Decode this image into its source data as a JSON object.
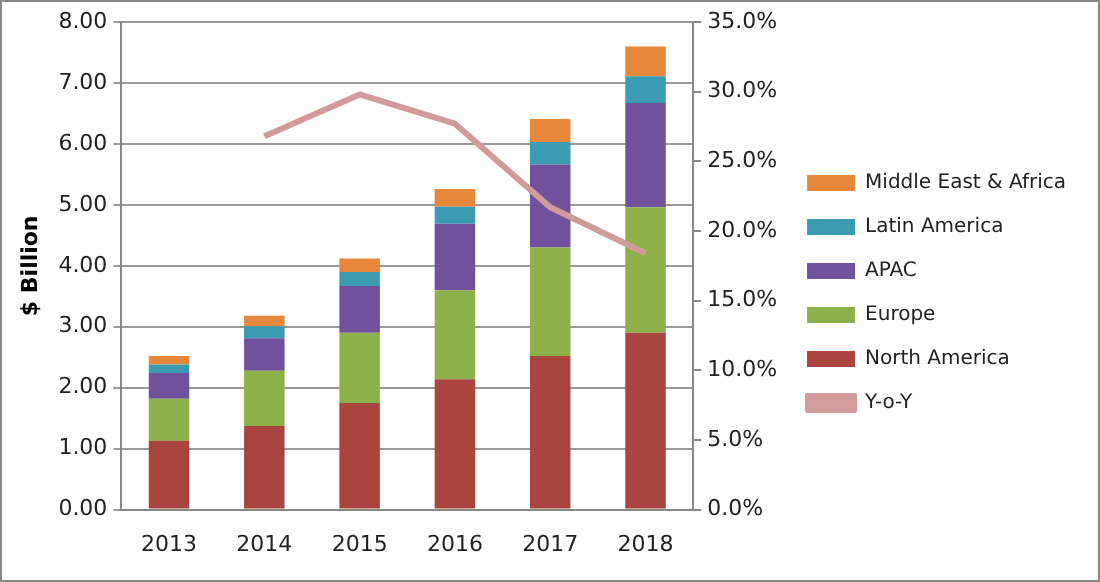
{
  "chart_data": {
    "type": "bar",
    "stacked": true,
    "ylabel": "$ Billion",
    "categories": [
      "2013",
      "2014",
      "2015",
      "2016",
      "2017",
      "2018"
    ],
    "series": [
      {
        "name": "North America",
        "color": "#a9443e",
        "values": [
          1.13,
          1.37,
          1.75,
          2.14,
          2.52,
          2.9
        ]
      },
      {
        "name": "Europe",
        "color": "#8cb14a",
        "values": [
          0.69,
          0.91,
          1.15,
          1.46,
          1.78,
          2.06
        ]
      },
      {
        "name": "APAC",
        "color": "#6f519c",
        "values": [
          0.42,
          0.53,
          0.77,
          1.09,
          1.36,
          1.71
        ]
      },
      {
        "name": "Latin America",
        "color": "#3b9bb2",
        "values": [
          0.14,
          0.2,
          0.23,
          0.28,
          0.37,
          0.44
        ]
      },
      {
        "name": "Middle East & Africa",
        "color": "#e6873b",
        "values": [
          0.14,
          0.17,
          0.22,
          0.29,
          0.38,
          0.49
        ]
      },
      {
        "name": "Y-o-Y",
        "type": "line",
        "axis": "y2",
        "color": "#d29a9a",
        "values": [
          null,
          26.8,
          29.8,
          27.7,
          21.7,
          18.4
        ]
      }
    ],
    "ylim": [
      0,
      8
    ],
    "yticks": [
      {
        "value": 0,
        "label": "0.00"
      },
      {
        "value": 1,
        "label": "1.00"
      },
      {
        "value": 2,
        "label": "2.00"
      },
      {
        "value": 3,
        "label": "3.00"
      },
      {
        "value": 4,
        "label": "4.00"
      },
      {
        "value": 5,
        "label": "5.00"
      },
      {
        "value": 6,
        "label": "6.00"
      },
      {
        "value": 7,
        "label": "7.00"
      },
      {
        "value": 8,
        "label": "8.00"
      }
    ],
    "y2lim": [
      0,
      35
    ],
    "y2ticks": [
      {
        "value": 0,
        "label": "0.0%"
      },
      {
        "value": 5,
        "label": "5.0%"
      },
      {
        "value": 10,
        "label": "10.0%"
      },
      {
        "value": 15,
        "label": "15.0%"
      },
      {
        "value": 20,
        "label": "20.0%"
      },
      {
        "value": 25,
        "label": "25.0%"
      },
      {
        "value": 30,
        "label": "30.0%"
      },
      {
        "value": 35,
        "label": "35.0%"
      }
    ],
    "grid": "y",
    "legend": "right",
    "marker": "none",
    "line_style": "solid"
  }
}
